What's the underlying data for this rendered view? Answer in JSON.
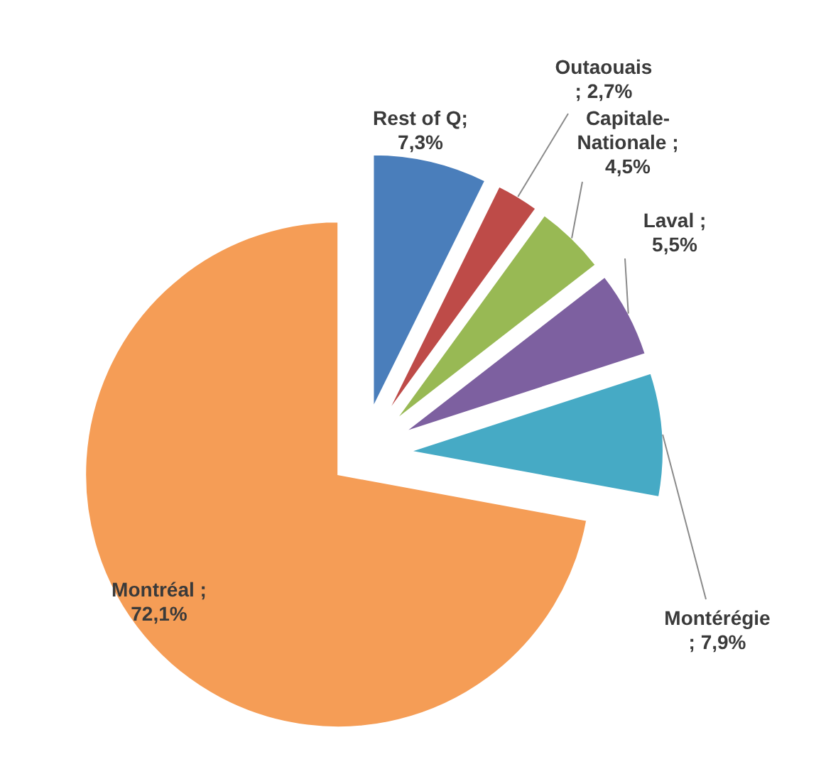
{
  "chart_data": {
    "type": "pie",
    "categories": [
      "Rest of Q",
      "Outaouais",
      "Capitale-Nationale",
      "Laval",
      "Montérégie",
      "Montréal"
    ],
    "values": [
      7.3,
      2.7,
      4.5,
      5.5,
      7.9,
      72.1
    ],
    "colors": [
      "#4a7ebb",
      "#be4b48",
      "#98b954",
      "#7d60a0",
      "#46aac5",
      "#f59d56"
    ],
    "value_labels": [
      ";\n7,3%",
      "\n; 2,7%",
      " ;\n4,5%",
      " ;\n5,5%",
      "\n; 7,9%",
      " ;\n72,1%"
    ],
    "legend": false
  }
}
